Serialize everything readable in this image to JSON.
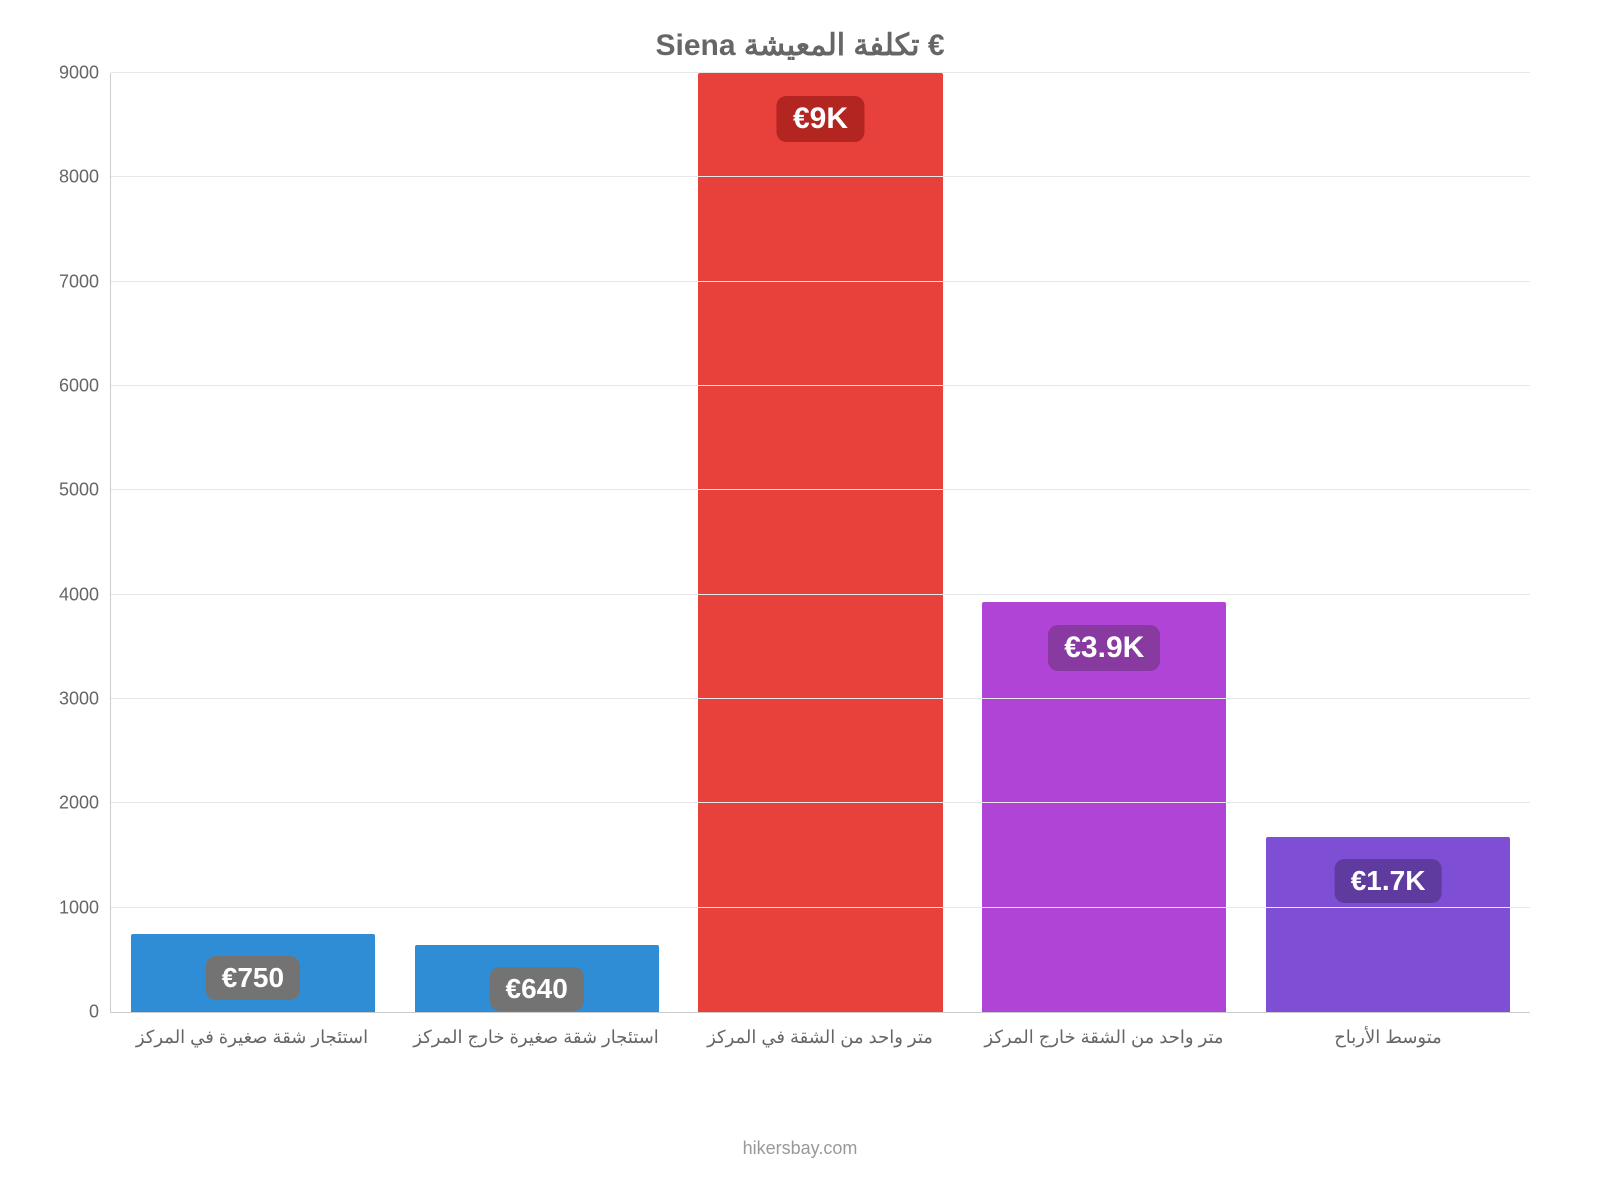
{
  "chart": {
    "type": "bar",
    "title": "€ تكلفة المعيشة Siena",
    "title_color": "#666666",
    "title_fontsize": 30,
    "background_color": "#ffffff",
    "grid_color": "#e8e8e8",
    "axis_color": "#cccccc",
    "label_color": "#666666",
    "x_label_fontsize": 18,
    "y_label_fontsize": 18,
    "ylim": [
      0,
      9000
    ],
    "ytick_step": 1000,
    "yticks": [
      0,
      1000,
      2000,
      3000,
      4000,
      5000,
      6000,
      7000,
      8000,
      9000
    ],
    "bar_width_pct": 86,
    "categories": [
      "استئجار شقة صغيرة في المركز",
      "استئجار شقة صغيرة خارج المركز",
      "متر واحد من الشقة في المركز",
      "متر واحد من الشقة خارج المركز",
      "متوسط الأرباح"
    ],
    "values": [
      750,
      640,
      9000,
      3930,
      1680
    ],
    "display_values": [
      "€750",
      "€640",
      "€9K",
      "€3.9K",
      "€1.7K"
    ],
    "bar_colors": [
      "#2f8dd6",
      "#2f8dd6",
      "#e8403b",
      "#b044d6",
      "#7e4fd4"
    ],
    "badge_colors": [
      "#737373",
      "#737373",
      "#b22521",
      "#883aa0",
      "#5f3ba0"
    ],
    "badge_fontsize": [
      28,
      28,
      30,
      30,
      28
    ],
    "credit": "hikersbay.com",
    "credit_color": "#999999"
  }
}
